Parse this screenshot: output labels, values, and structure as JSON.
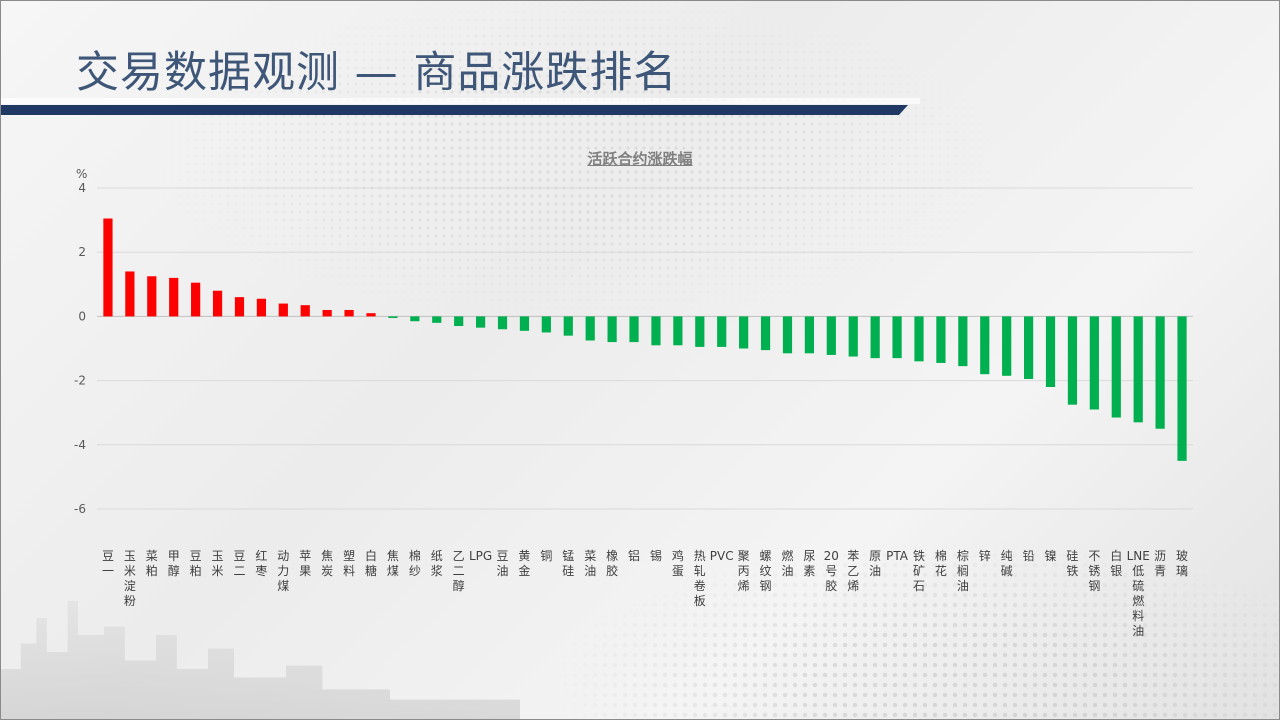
{
  "header": {
    "title": "交易数据观测 — 商品涨跌排名"
  },
  "colors": {
    "up": "#ff0000",
    "down": "#00b050",
    "title": "#3e5677",
    "bar": "#1f3864"
  },
  "chart_data": {
    "type": "bar",
    "title": "活跃合约涨跌幅",
    "ylabel": "%",
    "xlabel": "",
    "ylim": [
      -6,
      4
    ],
    "yticks": [
      4,
      2,
      0,
      -2,
      -4,
      -6
    ],
    "grid": true,
    "legend": "none",
    "categories": [
      "豆一",
      "玉米淀粉",
      "菜粕",
      "甲醇",
      "豆粕",
      "玉米",
      "豆二",
      "红枣",
      "动力煤",
      "苹果",
      "焦炭",
      "塑料",
      "白糖",
      "焦煤",
      "棉纱",
      "纸浆",
      "乙二醇",
      "LPG",
      "豆油",
      "黄金",
      "铜",
      "锰硅",
      "菜油",
      "橡胶",
      "铝",
      "锡",
      "鸡蛋",
      "热轧卷板",
      "PVC",
      "聚丙烯",
      "螺纹钢",
      "燃油",
      "尿素",
      "20号胶",
      "苯乙烯",
      "原油",
      "PTA",
      "铁矿石",
      "棉花",
      "棕榈油",
      "锌",
      "纯碱",
      "铅",
      "镍",
      "硅铁",
      "不锈钢",
      "白银",
      "LNE低硫燃料油",
      "沥青",
      "玻璃"
    ],
    "values": [
      3.05,
      1.4,
      1.25,
      1.2,
      1.05,
      0.8,
      0.6,
      0.55,
      0.4,
      0.35,
      0.2,
      0.2,
      0.1,
      -0.05,
      -0.15,
      -0.2,
      -0.3,
      -0.35,
      -0.4,
      -0.45,
      -0.5,
      -0.6,
      -0.75,
      -0.8,
      -0.8,
      -0.9,
      -0.9,
      -0.95,
      -0.95,
      -1.0,
      -1.05,
      -1.15,
      -1.15,
      -1.2,
      -1.25,
      -1.3,
      -1.3,
      -1.4,
      -1.45,
      -1.55,
      -1.8,
      -1.85,
      -1.95,
      -2.2,
      -2.75,
      -2.9,
      -3.15,
      -3.3,
      -3.5,
      -4.5
    ]
  }
}
